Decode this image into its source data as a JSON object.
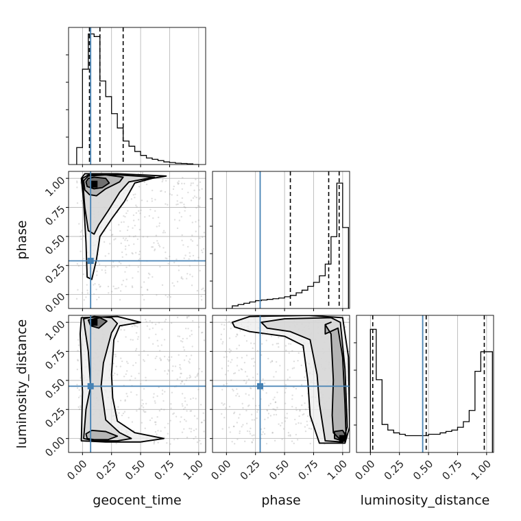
{
  "chart_data": {
    "type": "corner",
    "parameters": [
      "geocent_time",
      "phase",
      "luminosity_distance"
    ],
    "axis_labels": {
      "x": [
        "geocent_time",
        "phase",
        "luminosity_distance"
      ],
      "y": [
        "",
        "phase",
        "luminosity_distance"
      ]
    },
    "axis_range": [
      -0.12,
      1.06
    ],
    "ticks": [
      0.0,
      0.25,
      0.5,
      0.75,
      1.0
    ],
    "tick_labels": [
      "0.00",
      "0.25",
      "0.50",
      "0.75",
      "1.00"
    ],
    "truths": {
      "geocent_time": 0.07,
      "phase": 0.29,
      "luminosity_distance": 0.45
    },
    "quantile_lines": {
      "geocent_time": [
        0.06,
        0.15,
        0.35
      ],
      "phase": [
        0.55,
        0.88,
        0.97
      ],
      "luminosity_distance": [
        0.02,
        0.48,
        0.98
      ]
    },
    "histograms": {
      "geocent_time": {
        "edges": [
          -0.05,
          0.0,
          0.05,
          0.1,
          0.15,
          0.2,
          0.25,
          0.3,
          0.35,
          0.4,
          0.45,
          0.5,
          0.55,
          0.6,
          0.65,
          0.7,
          0.75,
          0.8,
          0.85,
          0.9,
          0.95,
          1.0
        ],
        "counts": [
          0.13,
          0.73,
          1.0,
          0.98,
          0.64,
          0.52,
          0.39,
          0.28,
          0.18,
          0.14,
          0.1,
          0.07,
          0.05,
          0.04,
          0.03,
          0.02,
          0.015,
          0.01,
          0.008,
          0.005,
          0.0
        ],
        "ylim": [
          0,
          1.05
        ]
      },
      "phase": {
        "edges": [
          0.0,
          0.05,
          0.1,
          0.15,
          0.2,
          0.25,
          0.3,
          0.35,
          0.4,
          0.45,
          0.5,
          0.55,
          0.6,
          0.65,
          0.7,
          0.75,
          0.8,
          0.85,
          0.9,
          0.95,
          1.0,
          1.05
        ],
        "counts": [
          0.0,
          0.02,
          0.03,
          0.04,
          0.05,
          0.06,
          0.065,
          0.07,
          0.075,
          0.08,
          0.09,
          0.1,
          0.12,
          0.14,
          0.17,
          0.2,
          0.25,
          0.34,
          0.55,
          0.96,
          0.62
        ],
        "ylim": [
          0,
          1.05
        ]
      },
      "luminosity_distance": {
        "edges": [
          0.0,
          0.05,
          0.1,
          0.15,
          0.2,
          0.25,
          0.3,
          0.35,
          0.4,
          0.45,
          0.5,
          0.55,
          0.6,
          0.65,
          0.7,
          0.75,
          0.8,
          0.85,
          0.9,
          0.95,
          1.0,
          1.05
        ],
        "counts": [
          0.88,
          0.52,
          0.2,
          0.16,
          0.14,
          0.13,
          0.12,
          0.12,
          0.12,
          0.12,
          0.13,
          0.13,
          0.14,
          0.15,
          0.16,
          0.18,
          0.22,
          0.3,
          0.58,
          0.72,
          0.72
        ],
        "ylim": [
          0,
          0.98
        ]
      }
    },
    "joint_2d": [
      {
        "x": "geocent_time",
        "y": "phase",
        "peak": [
          0.1,
          0.95
        ],
        "contours": [
          [
            [
              0.03,
              0.97
            ],
            [
              0.05,
              1.0
            ],
            [
              0.1,
              1.01
            ],
            [
              0.2,
              1.0
            ],
            [
              0.23,
              0.96
            ],
            [
              0.17,
              0.92
            ],
            [
              0.1,
              0.91
            ],
            [
              0.04,
              0.93
            ]
          ],
          [
            [
              0.01,
              0.98
            ],
            [
              0.05,
              1.02
            ],
            [
              0.2,
              1.03
            ],
            [
              0.35,
              1.01
            ],
            [
              0.32,
              0.97
            ],
            [
              0.2,
              0.91
            ],
            [
              0.12,
              0.85
            ],
            [
              0.06,
              0.86
            ],
            [
              0.02,
              0.9
            ]
          ],
          [
            [
              0.0,
              1.0
            ],
            [
              0.05,
              1.03
            ],
            [
              0.3,
              1.03
            ],
            [
              0.62,
              1.01
            ],
            [
              0.4,
              0.97
            ],
            [
              0.32,
              0.88
            ],
            [
              0.22,
              0.72
            ],
            [
              0.14,
              0.6
            ],
            [
              0.1,
              0.52
            ],
            [
              0.05,
              0.55
            ],
            [
              0.02,
              0.75
            ]
          ],
          [
            [
              -0.01,
              1.0
            ],
            [
              0.02,
              1.04
            ],
            [
              0.3,
              1.04
            ],
            [
              0.72,
              1.02
            ],
            [
              0.6,
              1.0
            ],
            [
              0.45,
              0.96
            ],
            [
              0.36,
              0.8
            ],
            [
              0.25,
              0.65
            ],
            [
              0.15,
              0.5
            ],
            [
              0.12,
              0.3
            ],
            [
              0.08,
              0.13
            ],
            [
              0.04,
              0.15
            ],
            [
              0.03,
              0.45
            ],
            [
              0.01,
              0.8
            ]
          ]
        ]
      },
      {
        "x": "geocent_time",
        "y": "luminosity_distance",
        "peak": [
          0.1,
          1.0
        ],
        "contours": [
          [
            [
              0.05,
              1.02
            ],
            [
              0.15,
              1.04
            ],
            [
              0.21,
              1.01
            ],
            [
              0.14,
              0.95
            ],
            [
              0.07,
              0.97
            ]
          ],
          [
            [
              0.03,
              0.04
            ],
            [
              0.08,
              0.07
            ],
            [
              0.2,
              0.06
            ],
            [
              0.3,
              0.02
            ],
            [
              0.22,
              -0.01
            ],
            [
              0.1,
              -0.01
            ],
            [
              0.04,
              0.0
            ]
          ],
          [
            [
              0.01,
              1.03
            ],
            [
              0.1,
              1.05
            ],
            [
              0.25,
              1.04
            ],
            [
              0.3,
              0.99
            ],
            [
              0.25,
              0.91
            ],
            [
              0.18,
              0.65
            ],
            [
              0.16,
              0.45
            ],
            [
              0.2,
              0.16
            ],
            [
              0.32,
              0.05
            ],
            [
              0.42,
              0.0
            ],
            [
              0.3,
              -0.02
            ],
            [
              0.1,
              -0.02
            ],
            [
              0.01,
              0.0
            ],
            [
              0.03,
              0.25
            ],
            [
              0.07,
              0.45
            ],
            [
              0.05,
              0.75
            ],
            [
              0.02,
              0.95
            ]
          ],
          [
            [
              -0.01,
              1.04
            ],
            [
              0.3,
              1.05
            ],
            [
              0.5,
              1.0
            ],
            [
              0.32,
              0.97
            ],
            [
              0.27,
              0.85
            ],
            [
              0.25,
              0.55
            ],
            [
              0.26,
              0.35
            ],
            [
              0.3,
              0.15
            ],
            [
              0.45,
              0.05
            ],
            [
              0.7,
              0.0
            ],
            [
              0.5,
              -0.03
            ],
            [
              0.2,
              -0.03
            ],
            [
              -0.01,
              -0.02
            ],
            [
              0.0,
              0.4
            ],
            [
              -0.02,
              0.9
            ]
          ]
        ]
      },
      {
        "x": "phase",
        "y": "luminosity_distance",
        "peak": [
          1.0,
          0.0
        ],
        "contours": [
          [
            [
              0.93,
              0.06
            ],
            [
              1.0,
              0.07
            ],
            [
              1.03,
              0.02
            ],
            [
              1.0,
              -0.02
            ],
            [
              0.93,
              0.0
            ]
          ],
          [
            [
              0.85,
              0.9
            ],
            [
              0.85,
              0.98
            ],
            [
              0.9,
              1.0
            ],
            [
              0.85,
              0.98
            ],
            [
              0.9,
              0.9
            ],
            [
              0.92,
              0.5
            ],
            [
              0.91,
              0.2
            ],
            [
              0.92,
              0.05
            ],
            [
              0.98,
              -0.01
            ],
            [
              1.03,
              0.0
            ],
            [
              1.02,
              0.3
            ],
            [
              1.0,
              0.7
            ],
            [
              0.96,
              0.95
            ]
          ],
          [
            [
              0.3,
              1.0
            ],
            [
              0.5,
              1.03
            ],
            [
              0.9,
              1.04
            ],
            [
              0.98,
              1.0
            ],
            [
              1.02,
              0.6
            ],
            [
              1.04,
              0.1
            ],
            [
              1.0,
              -0.03
            ],
            [
              0.85,
              -0.02
            ],
            [
              0.8,
              0.3
            ],
            [
              0.78,
              0.55
            ],
            [
              0.72,
              0.85
            ],
            [
              0.55,
              0.92
            ],
            [
              0.35,
              0.95
            ]
          ],
          [
            [
              0.05,
              1.0
            ],
            [
              0.2,
              1.05
            ],
            [
              0.7,
              1.06
            ],
            [
              1.0,
              1.04
            ],
            [
              1.05,
              0.7
            ],
            [
              1.06,
              0.1
            ],
            [
              1.02,
              -0.04
            ],
            [
              0.8,
              -0.04
            ],
            [
              0.72,
              0.2
            ],
            [
              0.7,
              0.5
            ],
            [
              0.66,
              0.8
            ],
            [
              0.5,
              0.88
            ],
            [
              0.2,
              0.92
            ],
            [
              0.07,
              0.96
            ]
          ]
        ]
      }
    ]
  }
}
